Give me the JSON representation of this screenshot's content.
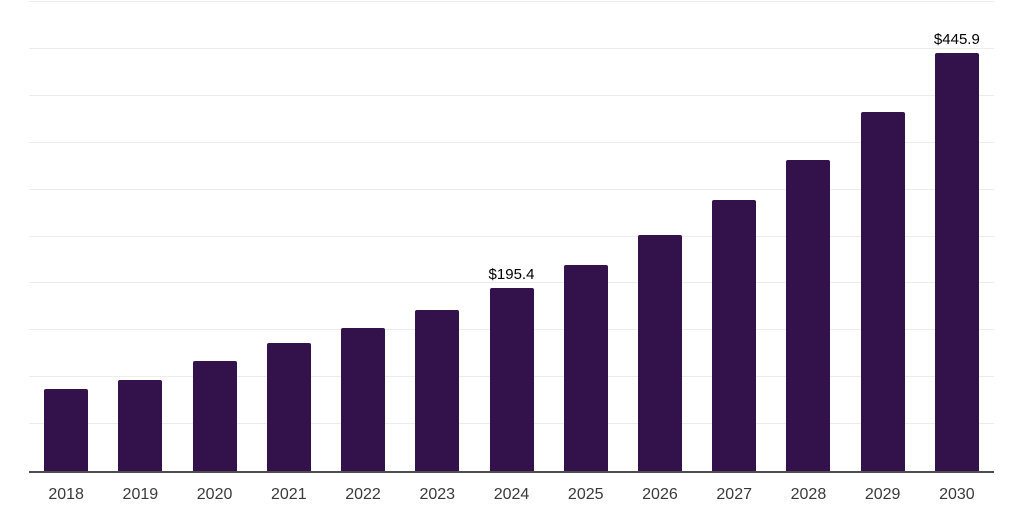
{
  "chart": {
    "background_color": "#ffffff",
    "bar_color": "#33124b",
    "grid_color": "#ececec",
    "axis_color": "#4d4d4d",
    "data_label_color": "#000000",
    "tick_label_color": "#3a3a3a"
  },
  "chart_data": {
    "type": "bar",
    "title": "",
    "xlabel": "",
    "ylabel": "",
    "categories": [
      "2018",
      "2019",
      "2020",
      "2021",
      "2022",
      "2023",
      "2024",
      "2025",
      "2026",
      "2027",
      "2028",
      "2029",
      "2030"
    ],
    "values": [
      87,
      97,
      117,
      137,
      153,
      172,
      195.4,
      220,
      252,
      289,
      332,
      383,
      445.9
    ],
    "point_labels": [
      "",
      "",
      "",
      "",
      "",
      "",
      "$195.4",
      "",
      "",
      "",
      "",
      "",
      "$445.9"
    ],
    "ylim": [
      0,
      500
    ],
    "gridline_step": 50,
    "grid": true,
    "y_axis_labels_visible": false,
    "legend": false
  }
}
